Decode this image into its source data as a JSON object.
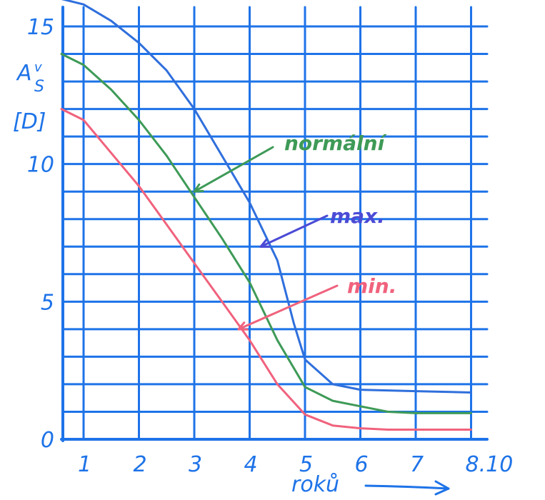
{
  "chart_data": {
    "type": "line",
    "title": "",
    "xlabel": "roků",
    "ylabel": "A_s [D]",
    "ylabel_parts": {
      "main": "A",
      "sub": "S",
      "accent": "v",
      "unit": "[D]"
    },
    "x_ticks": [
      {
        "value": 1,
        "label": "1"
      },
      {
        "value": 2,
        "label": "2"
      },
      {
        "value": 3,
        "label": "3"
      },
      {
        "value": 4,
        "label": "4"
      },
      {
        "value": 5,
        "label": "5"
      },
      {
        "value": 6,
        "label": "6"
      },
      {
        "value": 7,
        "label": "7"
      },
      {
        "value": 8,
        "label": "8.10"
      }
    ],
    "y_ticks": [
      {
        "value": 0,
        "label": "0"
      },
      {
        "value": 5,
        "label": "5"
      },
      {
        "value": 10,
        "label": "10"
      },
      {
        "value": 15,
        "label": "15"
      }
    ],
    "xlim": [
      0.5,
      8.1
    ],
    "ylim": [
      0,
      16
    ],
    "grid": true,
    "series": [
      {
        "name": "max.",
        "color": "#2f6fdc",
        "x": [
          0.6,
          1.0,
          1.5,
          2.0,
          2.5,
          3.0,
          3.5,
          4.0,
          4.5,
          4.8,
          5.0,
          5.5,
          6.0,
          7.0,
          8.0
        ],
        "y": [
          16.0,
          15.8,
          15.2,
          14.4,
          13.4,
          12.0,
          10.3,
          8.6,
          6.5,
          4.2,
          2.9,
          2.0,
          1.8,
          1.75,
          1.7
        ]
      },
      {
        "name": "normální",
        "color": "#3e9a57",
        "x": [
          0.6,
          1.0,
          1.5,
          2.0,
          2.5,
          3.0,
          3.5,
          4.0,
          4.5,
          5.0,
          5.5,
          6.0,
          6.5,
          7.0,
          8.0
        ],
        "y": [
          14.0,
          13.6,
          12.7,
          11.6,
          10.3,
          8.8,
          7.3,
          5.7,
          3.6,
          1.9,
          1.4,
          1.2,
          1.0,
          0.95,
          0.95
        ]
      },
      {
        "name": "min.",
        "color": "#f0627d",
        "x": [
          0.6,
          1.0,
          1.5,
          2.0,
          2.5,
          3.0,
          3.5,
          4.0,
          4.5,
          5.0,
          5.5,
          6.0,
          6.5,
          7.0,
          8.0
        ],
        "y": [
          12.0,
          11.6,
          10.4,
          9.2,
          7.8,
          6.4,
          5.0,
          3.6,
          2.0,
          0.9,
          0.5,
          0.4,
          0.35,
          0.35,
          0.35
        ]
      }
    ],
    "annotations": [
      {
        "text": "normální",
        "color": "#3e9a57",
        "points_to": {
          "x": 3.0,
          "y": 9.0
        }
      },
      {
        "text": "max.",
        "color": "#4b4bd6",
        "points_to": {
          "x": 4.2,
          "y": 7.0
        }
      },
      {
        "text": "min.",
        "color": "#f0627d",
        "points_to": {
          "x": 3.8,
          "y": 4.0
        }
      }
    ]
  }
}
